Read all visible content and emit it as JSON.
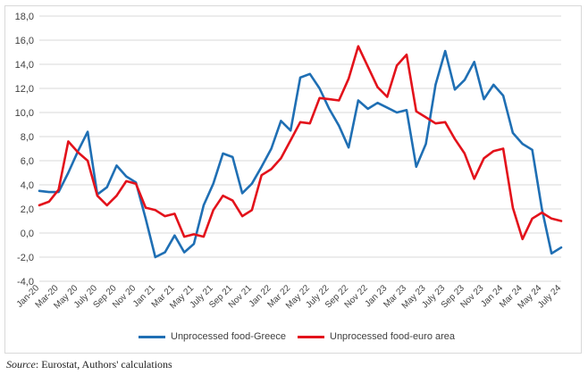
{
  "chart_data": {
    "type": "line",
    "title": "",
    "xlabel": "",
    "ylabel": "",
    "ylim": [
      -4,
      18
    ],
    "y_ticks": [
      "-4,0",
      "-2,0",
      "0,0",
      "2,0",
      "4,0",
      "6,0",
      "8,0",
      "10,0",
      "12,0",
      "14,0",
      "16,0",
      "18,0"
    ],
    "x_tick_labels": [
      "Jan-20",
      "Mar-20",
      "May 20",
      "July 20",
      "Sep 20",
      "Nov 20",
      "Jan 21",
      "Mar 21",
      "May 21",
      "July 21",
      "Sep 21",
      "Nov 21",
      "Jan 22",
      "Mar 22",
      "May 22",
      "July 22",
      "Sep 22",
      "Nov 22",
      "Jan 23",
      "Mar 23",
      "May 23",
      "July 23",
      "Sep 23",
      "Nov 23",
      "Jan 24",
      "Mar 24",
      "May 24",
      "July 24"
    ],
    "x": [
      "Jan-20",
      "Feb-20",
      "Mar-20",
      "Apr-20",
      "May-20",
      "Jun-20",
      "Jul-20",
      "Aug-20",
      "Sep-20",
      "Oct-20",
      "Nov-20",
      "Dec-20",
      "Jan-21",
      "Feb-21",
      "Mar-21",
      "Apr-21",
      "May-21",
      "Jun-21",
      "Jul-21",
      "Aug-21",
      "Sep-21",
      "Oct-21",
      "Nov-21",
      "Dec-21",
      "Jan-22",
      "Feb-22",
      "Mar-22",
      "Apr-22",
      "May-22",
      "Jun-22",
      "Jul-22",
      "Aug-22",
      "Sep-22",
      "Oct-22",
      "Nov-22",
      "Dec-22",
      "Jan-23",
      "Feb-23",
      "Mar-23",
      "Apr-23",
      "May-23",
      "Jun-23",
      "Jul-23",
      "Aug-23",
      "Sep-23",
      "Oct-23",
      "Nov-23",
      "Dec-23",
      "Jan-24",
      "Feb-24",
      "Mar-24",
      "Apr-24",
      "May-24",
      "Jun-24",
      "Jul-24"
    ],
    "series": [
      {
        "name": "Unprocessed food-Greece",
        "color": "#1f6fb4",
        "values": [
          3.5,
          3.4,
          3.4,
          5.0,
          6.8,
          8.4,
          3.2,
          3.8,
          5.6,
          4.7,
          4.2,
          1.2,
          -2.0,
          -1.6,
          -0.2,
          -1.6,
          -0.9,
          2.3,
          4.1,
          6.6,
          6.3,
          3.3,
          4.1,
          5.5,
          7.0,
          9.3,
          8.5,
          12.9,
          13.2,
          12.0,
          10.3,
          8.9,
          7.1,
          11.0,
          10.3,
          10.8,
          10.4,
          10.0,
          10.2,
          5.5,
          7.4,
          12.3,
          15.1,
          11.9,
          12.7,
          14.2,
          11.1,
          12.3,
          11.4,
          8.3,
          7.4,
          6.9,
          2.0,
          -1.7,
          -1.2
        ]
      },
      {
        "name": "Unprocessed food-euro area",
        "color": "#e3121b",
        "values": [
          2.3,
          2.6,
          3.6,
          7.6,
          6.7,
          6.0,
          3.1,
          2.3,
          3.1,
          4.3,
          4.1,
          2.1,
          1.9,
          1.4,
          1.6,
          -0.3,
          -0.1,
          -0.3,
          1.9,
          3.1,
          2.7,
          1.4,
          1.9,
          4.8,
          5.3,
          6.2,
          7.7,
          9.2,
          9.1,
          11.2,
          11.1,
          11.0,
          12.8,
          15.5,
          13.8,
          12.1,
          11.3,
          13.9,
          14.8,
          10.1,
          9.6,
          9.1,
          9.2,
          7.8,
          6.6,
          4.5,
          6.2,
          6.8,
          7.0,
          2.1,
          -0.5,
          1.2,
          1.7,
          1.2,
          1.0
        ]
      }
    ],
    "grid": "horizontal",
    "legend_position": "bottom"
  },
  "source": {
    "label": "Source",
    "text": ": Eurostat, Authors' calculations"
  }
}
